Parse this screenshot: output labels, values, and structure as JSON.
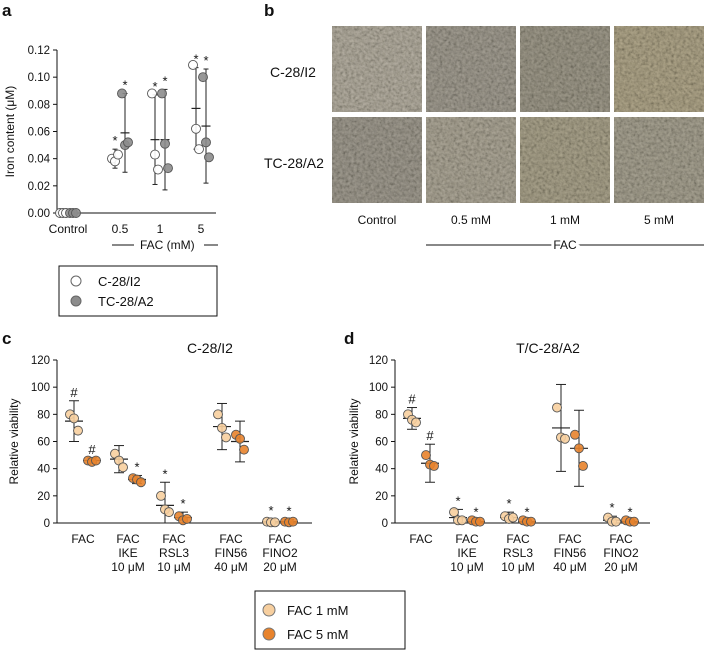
{
  "panels": {
    "a": "a",
    "b": "b",
    "c": "c",
    "d": "d"
  },
  "colors": {
    "c28_fill": "#ffffff",
    "tc28_fill": "#8c8c8c",
    "fac1_fill": "#f7cf9f",
    "fac5_fill": "#e8832c",
    "axis": "#111111"
  },
  "chart_data": [
    {
      "id": "a",
      "type": "scatter",
      "ylabel": "Iron content (μM)",
      "ylim": [
        0,
        0.12
      ],
      "yticks": [
        "0.00",
        "0.02",
        "0.04",
        "0.06",
        "0.08",
        "0.10",
        "0.12"
      ],
      "categories": [
        "Control",
        "0.5",
        "1",
        "5"
      ],
      "group_label": "FAC (mM)",
      "series": [
        {
          "name": "C-28/I2",
          "fill": "#ffffff",
          "points": [
            [
              0,
              0,
              0
            ],
            [
              0.04,
              0.038,
              0.043
            ],
            [
              0.088,
              0.043,
              0.032
            ],
            [
              0.109,
              0.062,
              0.047
            ]
          ],
          "mean": [
            0,
            0.04,
            0.054,
            0.077
          ],
          "sd": [
            0,
            0.007,
            0.033,
            0.03
          ],
          "stars": [
            "",
            "*",
            "*",
            "*"
          ]
        },
        {
          "name": "TC-28/A2",
          "fill": "#8c8c8c",
          "points": [
            [
              0,
              0,
              0
            ],
            [
              0.088,
              0.05,
              0.052
            ],
            [
              0.088,
              0.051,
              0.033
            ],
            [
              0.1,
              0.052,
              0.041
            ]
          ],
          "mean": [
            0,
            0.059,
            0.054,
            0.064
          ],
          "sd": [
            0,
            0.029,
            0.037,
            0.042
          ],
          "stars": [
            "",
            "*",
            "*",
            "*"
          ]
        }
      ]
    },
    {
      "id": "c",
      "type": "scatter",
      "title": "C-28/I2",
      "ylabel": "Relative viability",
      "ylim": [
        0,
        120
      ],
      "yticks": [
        "0",
        "20",
        "40",
        "60",
        "80",
        "100",
        "120"
      ],
      "categories": [
        [
          "FAC"
        ],
        [
          "FAC",
          "IKE",
          "10 μM"
        ],
        [
          "FAC",
          "RSL3",
          "10 μM"
        ],
        [
          "FAC",
          "FIN56",
          "40 μM"
        ],
        [
          "FAC",
          "FINO2",
          "20 μM"
        ]
      ],
      "series": [
        {
          "name": "FAC 1 mM",
          "fill": "#f7cf9f",
          "points": [
            [
              80,
              77,
              68
            ],
            [
              51,
              46,
              41
            ],
            [
              20,
              10,
              8
            ],
            [
              80,
              70,
              63
            ],
            [
              1,
              0.5,
              0.5
            ]
          ],
          "mean": [
            75,
            47,
            13,
            71,
            1
          ],
          "sd": [
            15,
            10,
            17,
            17,
            2
          ],
          "marks": [
            "#",
            "",
            "*",
            "",
            "*"
          ]
        },
        {
          "name": "FAC 5 mM",
          "fill": "#e8832c",
          "points": [
            [
              46,
              45,
              46
            ],
            [
              33,
              32,
              30
            ],
            [
              5,
              2,
              3
            ],
            [
              65,
              62,
              54
            ],
            [
              1,
              0.5,
              1
            ]
          ],
          "mean": [
            46,
            32,
            4,
            60,
            1
          ],
          "sd": [
            2,
            3,
            4,
            15,
            1.5
          ],
          "marks": [
            "#",
            "*",
            "*",
            "",
            "*"
          ]
        }
      ]
    },
    {
      "id": "d",
      "type": "scatter",
      "title": "T/C-28/A2",
      "ylabel": "Relative viability",
      "ylim": [
        0,
        120
      ],
      "yticks": [
        "0",
        "20",
        "40",
        "60",
        "80",
        "100",
        "120"
      ],
      "categories": [
        [
          "FAC"
        ],
        [
          "FAC",
          "IKE",
          "10 μM"
        ],
        [
          "FAC",
          "RSL3",
          "10 μM"
        ],
        [
          "FAC",
          "FIN56",
          "40 μM"
        ],
        [
          "FAC",
          "FINO2",
          "20 μM"
        ]
      ],
      "series": [
        {
          "name": "FAC 1 mM",
          "fill": "#f7cf9f",
          "points": [
            [
              80,
              76,
              74
            ],
            [
              8,
              2,
              2
            ],
            [
              5,
              3,
              4
            ],
            [
              85,
              63,
              62
            ],
            [
              4,
              1,
              1
            ]
          ],
          "mean": [
            77,
            4,
            4,
            70,
            2
          ],
          "sd": [
            8,
            6,
            4,
            32,
            3
          ],
          "marks": [
            "#",
            "*",
            "*",
            "",
            "*"
          ]
        },
        {
          "name": "FAC 5 mM",
          "fill": "#e8832c",
          "points": [
            [
              50,
              43,
              42
            ],
            [
              2,
              1,
              1
            ],
            [
              2,
              1,
              1
            ],
            [
              65,
              55,
              42
            ],
            [
              2,
              1,
              1
            ]
          ],
          "mean": [
            44,
            1,
            1,
            55,
            1
          ],
          "sd": [
            14,
            1,
            1,
            28,
            1
          ],
          "marks": [
            "#",
            "*",
            "*",
            "",
            "*"
          ]
        }
      ]
    }
  ],
  "panel_b": {
    "row_labels": [
      "C-28/I2",
      "TC-28/A2"
    ],
    "col_labels": [
      "Control",
      "0.5 mM",
      "1 mM",
      "5 mM"
    ],
    "group_label": "FAC"
  },
  "legend_a": [
    "C-28/I2",
    "TC-28/A2"
  ],
  "legend_cd": [
    "FAC 1 mM",
    "FAC 5 mM"
  ]
}
